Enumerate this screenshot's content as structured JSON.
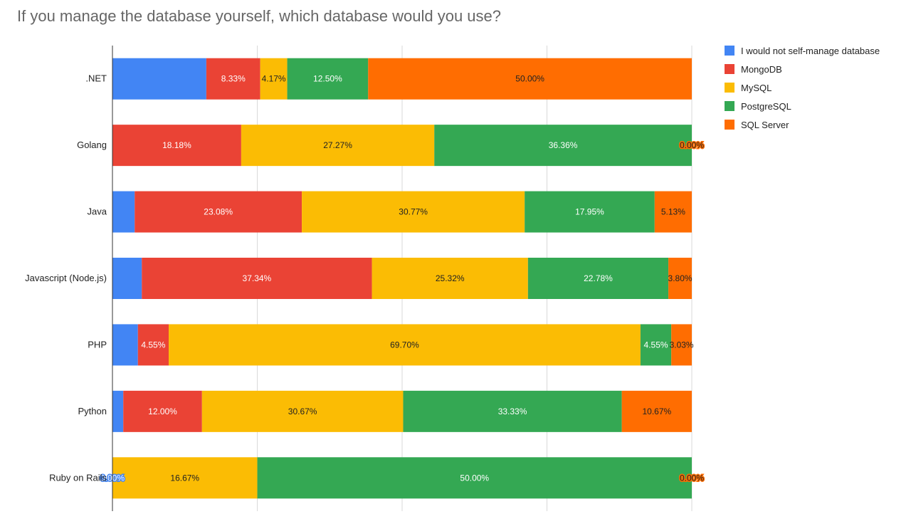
{
  "chart_data": {
    "type": "bar",
    "orientation": "horizontal",
    "stacked": true,
    "normalized": true,
    "title": "If you manage the database yourself, which database would you use?",
    "categories": [
      ".NET",
      "Golang",
      "Java",
      "Javascript (Node.js)",
      "PHP",
      "Python",
      "Ruby on Rails"
    ],
    "series": [
      {
        "name": "I would not self-manage database",
        "color": "#4285f4",
        "values": [
          14.5,
          0,
          3.07,
          4.76,
          3.76,
          1.65,
          0
        ],
        "labels": [
          "",
          "",
          "",
          "",
          "",
          "",
          "0.00%"
        ]
      },
      {
        "name": "MongoDB",
        "color": "#ea4335",
        "values": [
          8.33,
          18.18,
          23.08,
          37.34,
          4.55,
          12.0,
          0
        ],
        "labels": [
          "8.33%",
          "18.18%",
          "23.08%",
          "37.34%",
          "4.55%",
          "12.00%",
          ""
        ]
      },
      {
        "name": "MySQL",
        "color": "#fbbc04",
        "values": [
          4.17,
          27.27,
          30.77,
          25.32,
          69.7,
          30.67,
          16.67
        ],
        "labels": [
          "4.17%",
          "27.27%",
          "30.77%",
          "25.32%",
          "69.70%",
          "30.67%",
          "16.67%"
        ]
      },
      {
        "name": "PostgreSQL",
        "color": "#34a853",
        "values": [
          12.5,
          36.36,
          17.95,
          22.78,
          4.55,
          33.33,
          50.0
        ],
        "labels": [
          "12.50%",
          "36.36%",
          "17.95%",
          "22.78%",
          "4.55%",
          "33.33%",
          "50.00%"
        ]
      },
      {
        "name": "SQL Server",
        "color": "#ff6d01",
        "values": [
          50.0,
          0.0,
          5.13,
          3.8,
          3.03,
          10.67,
          0.0
        ],
        "labels": [
          "50.00%",
          "0.00%",
          "5.13%",
          "3.80%",
          "3.03%",
          "10.67%",
          "0.00%"
        ]
      }
    ],
    "xlim": [
      0,
      1
    ],
    "grid": true,
    "legend_position": "right"
  }
}
